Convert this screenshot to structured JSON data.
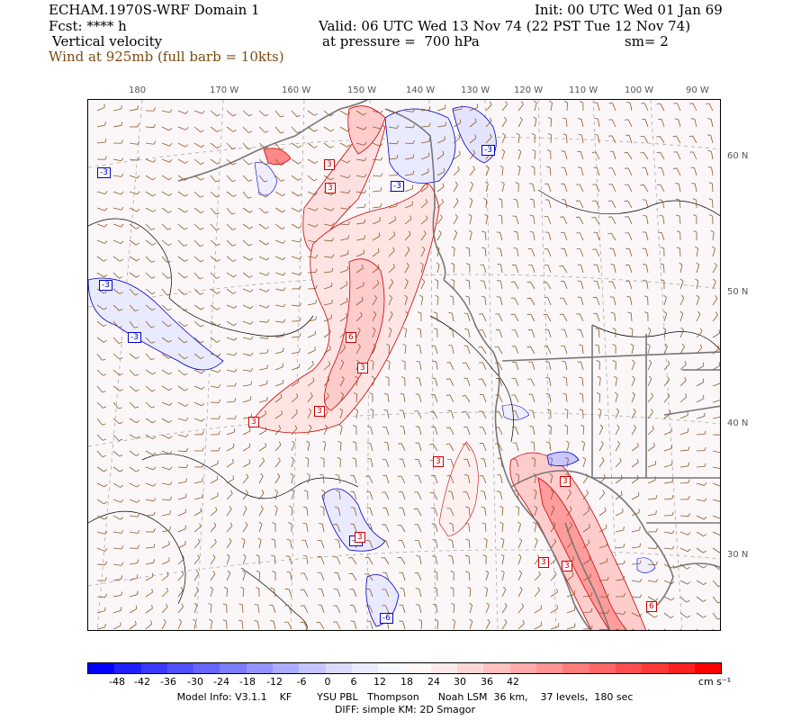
{
  "header": {
    "model_title": "ECHAM.1970S-WRF Domain 1",
    "init": "Init: 00 UTC Wed 01 Jan 69",
    "fcst": "Fcst: **** h",
    "valid": "Valid: 06 UTC Wed 13 Nov 74 (22 PST Tue 12 Nov 74)",
    "field": "Vertical velocity",
    "pressure": "at pressure =  700 hPa",
    "smooth": "sm= 2",
    "wind": "Wind at 925mb (full barb = 10kts)"
  },
  "longitudes": [
    "180",
    "170 W",
    "160 W",
    "150 W",
    "140 W",
    "130 W",
    "120 W",
    "110 W",
    "100 W",
    "90 W"
  ],
  "latitudes": [
    "60 N",
    "50 N",
    "40 N",
    "30 N"
  ],
  "contour_labels": [
    {
      "value": "-3",
      "sign": "neg"
    },
    {
      "value": "-3",
      "sign": "neg"
    },
    {
      "value": "-3",
      "sign": "neg"
    },
    {
      "value": "-3",
      "sign": "neg"
    },
    {
      "value": "-3",
      "sign": "neg"
    },
    {
      "value": "-3",
      "sign": "neg"
    },
    {
      "value": "-6",
      "sign": "neg"
    },
    {
      "value": "3",
      "sign": "pos"
    },
    {
      "value": "3",
      "sign": "pos"
    },
    {
      "value": "6",
      "sign": "pos"
    },
    {
      "value": "3",
      "sign": "pos"
    },
    {
      "value": "3",
      "sign": "pos"
    },
    {
      "value": "3",
      "sign": "pos"
    },
    {
      "value": "3",
      "sign": "pos"
    },
    {
      "value": "3",
      "sign": "pos"
    },
    {
      "value": "3",
      "sign": "pos"
    },
    {
      "value": "3",
      "sign": "pos"
    },
    {
      "value": "6",
      "sign": "pos"
    },
    {
      "value": "3",
      "sign": "pos"
    }
  ],
  "colorbar": {
    "labels": [
      "-48",
      "-42",
      "-36",
      "-30",
      "-24",
      "-18",
      "-12",
      "-6",
      "0",
      "6",
      "12",
      "18",
      "24",
      "30",
      "36",
      "42"
    ],
    "unit": "cm s⁻¹",
    "colors": [
      "#0000ff",
      "#2020ff",
      "#3a3aff",
      "#5050ff",
      "#6666ff",
      "#7c7cff",
      "#9494ff",
      "#acacff",
      "#c4c4ff",
      "#dadaff",
      "#ececff",
      "#f8f8ff",
      "#fff8f8",
      "#ffeaea",
      "#ffd6d6",
      "#ffc0c0",
      "#ffaaaa",
      "#ff9494",
      "#ff7c7c",
      "#ff6666",
      "#ff4e4e",
      "#ff3838",
      "#ff2020",
      "#ff0000"
    ]
  },
  "footer": {
    "line1": "Model Info: V3.1.1    KF        YSU PBL   Thompson      Noah LSM  36 km,    37 levels,  180 sec",
    "line2": "DIFF: simple KM: 2D Smagor"
  }
}
